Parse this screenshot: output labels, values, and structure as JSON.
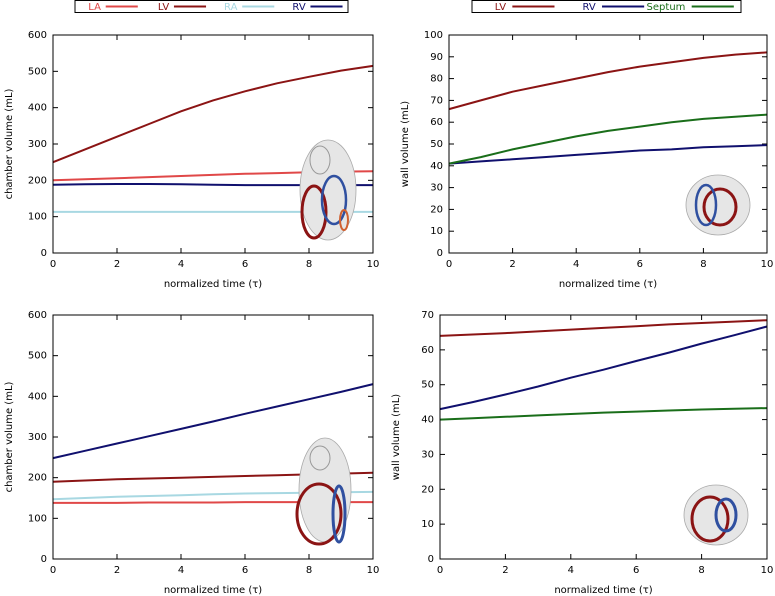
{
  "chart_data": [
    {
      "type": "line",
      "ylabel": "chamber volume (mL)",
      "xlabel": "normalized time (τ)",
      "x": [
        0,
        1,
        2,
        3,
        4,
        5,
        6,
        7,
        8,
        9,
        10
      ],
      "xlim": [
        0,
        10
      ],
      "xticks": [
        0,
        2,
        4,
        6,
        8,
        10
      ],
      "ylim": [
        0,
        600
      ],
      "yticks": [
        0,
        100,
        200,
        300,
        400,
        500,
        600
      ],
      "series": [
        {
          "name": "LA",
          "color": "#e04848",
          "values": [
            200,
            203,
            206,
            209,
            212,
            215,
            218,
            220,
            222,
            224,
            225
          ]
        },
        {
          "name": "LV",
          "color": "#8b1414",
          "values": [
            250,
            285,
            320,
            355,
            390,
            420,
            445,
            467,
            485,
            502,
            515
          ]
        },
        {
          "name": "RA",
          "color": "#a8d8e2",
          "values": [
            113,
            113,
            113,
            113,
            113,
            113,
            113,
            113,
            113,
            113,
            113
          ]
        },
        {
          "name": "RV",
          "color": "#10106e",
          "values": [
            188,
            189,
            190,
            190,
            189,
            188,
            187,
            187,
            187,
            187,
            187
          ]
        }
      ]
    },
    {
      "type": "line",
      "ylabel": "wall volume (mL)",
      "xlabel": "normalized time (τ)",
      "x": [
        0,
        1,
        2,
        3,
        4,
        5,
        6,
        7,
        8,
        9,
        10
      ],
      "xlim": [
        0,
        10
      ],
      "xticks": [
        0,
        2,
        4,
        6,
        8,
        10
      ],
      "ylim": [
        0,
        100
      ],
      "yticks": [
        0,
        10,
        20,
        30,
        40,
        50,
        60,
        70,
        80,
        90,
        100
      ],
      "series": [
        {
          "name": "LV",
          "color": "#8b1414",
          "values": [
            66,
            70,
            74,
            77,
            80,
            83,
            85.5,
            87.5,
            89.5,
            91,
            92
          ]
        },
        {
          "name": "RV",
          "color": "#10106e",
          "values": [
            41,
            42,
            43,
            44,
            45,
            46,
            47,
            47.5,
            48.5,
            49,
            49.5
          ]
        },
        {
          "name": "Septum",
          "color": "#1a6e1a",
          "values": [
            41,
            44,
            47.5,
            50.5,
            53.5,
            56,
            58,
            60,
            61.5,
            62.5,
            63.5
          ]
        }
      ]
    },
    {
      "type": "line",
      "ylabel": "chamber volume (mL)",
      "xlabel": "normalized time (τ)",
      "x": [
        0,
        1,
        2,
        3,
        4,
        5,
        6,
        7,
        8,
        9,
        10
      ],
      "xlim": [
        0,
        10
      ],
      "xticks": [
        0,
        2,
        4,
        6,
        8,
        10
      ],
      "ylim": [
        0,
        600
      ],
      "yticks": [
        0,
        100,
        200,
        300,
        400,
        500,
        600
      ],
      "series": [
        {
          "color": "#e04848",
          "values": [
            138,
            138,
            138,
            139,
            139,
            139,
            140,
            140,
            140,
            140,
            140
          ]
        },
        {
          "color": "#8b1414",
          "values": [
            190,
            193,
            196,
            198,
            200,
            202,
            204,
            206,
            208,
            210,
            212
          ]
        },
        {
          "color": "#a8d8e2",
          "values": [
            147,
            150,
            153,
            155,
            157,
            159,
            161,
            162,
            163,
            164,
            165
          ]
        },
        {
          "color": "#10106e",
          "values": [
            248,
            266,
            284,
            302,
            320,
            338,
            357,
            375,
            393,
            411,
            430
          ]
        }
      ]
    },
    {
      "type": "line",
      "ylabel": "wall volume (mL)",
      "xlabel": "normalized time (τ)",
      "x": [
        0,
        1,
        2,
        3,
        4,
        5,
        6,
        7,
        8,
        9,
        10
      ],
      "xlim": [
        0,
        10
      ],
      "xticks": [
        0,
        2,
        4,
        6,
        8,
        10
      ],
      "ylim": [
        0,
        70
      ],
      "yticks": [
        0,
        10,
        20,
        30,
        40,
        50,
        60,
        70
      ],
      "series": [
        {
          "color": "#8b1414",
          "values": [
            64,
            64.4,
            64.8,
            65.3,
            65.8,
            66.3,
            66.8,
            67.3,
            67.7,
            68.1,
            68.5
          ]
        },
        {
          "color": "#10106e",
          "values": [
            43,
            45,
            47.2,
            49.5,
            52,
            54.3,
            56.8,
            59.2,
            61.8,
            64.2,
            66.7
          ]
        },
        {
          "color": "#1a6e1a",
          "values": [
            40,
            40.4,
            40.8,
            41.2,
            41.6,
            42,
            42.3,
            42.6,
            42.9,
            43.1,
            43.3
          ]
        }
      ]
    }
  ]
}
